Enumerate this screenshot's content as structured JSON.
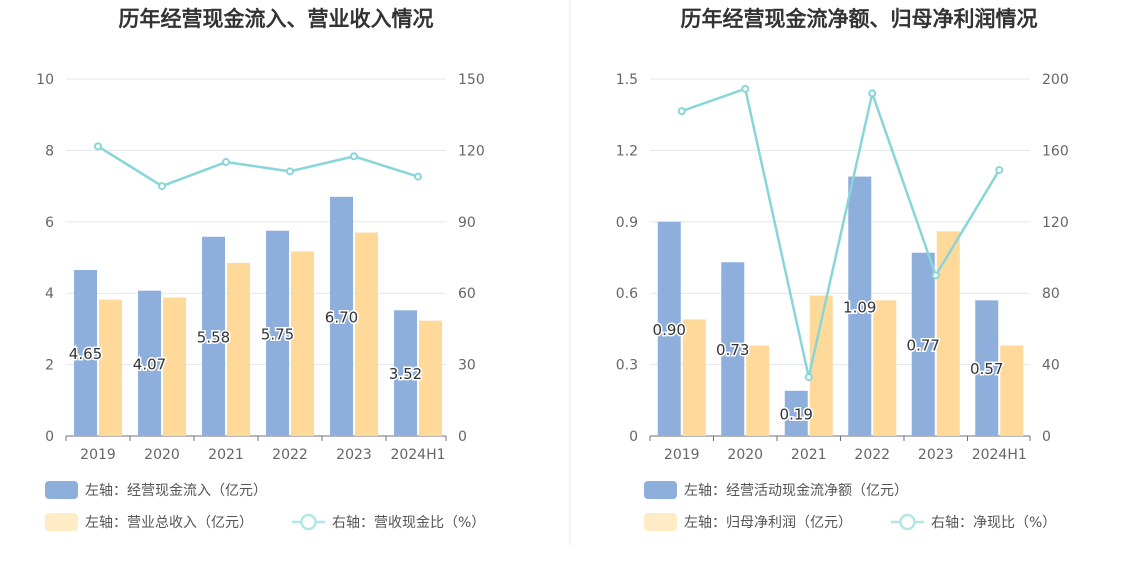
{
  "chart_data": [
    {
      "type": "bar",
      "title": "历年经营现金流入、营业收入情况",
      "categories": [
        "2019",
        "2020",
        "2021",
        "2022",
        "2023",
        "2024H1"
      ],
      "y_left": {
        "min": 0,
        "max": 10,
        "ticks": [
          "0",
          "2",
          "4",
          "6",
          "8",
          "10"
        ]
      },
      "y_right": {
        "min": 0,
        "max": 150,
        "ticks": [
          "0",
          "30",
          "60",
          "90",
          "120",
          "150"
        ]
      },
      "series": [
        {
          "name": "左轴：经营现金流入（亿元）",
          "kind": "bar",
          "axis": "left",
          "color": "#8eaedc",
          "values": [
            4.65,
            4.07,
            5.58,
            5.75,
            6.7,
            3.52
          ],
          "labels": [
            "4.65",
            "4.07",
            "5.58",
            "5.75",
            "6.70",
            "3.52"
          ]
        },
        {
          "name": "左轴：营业总收入（亿元）",
          "kind": "bar",
          "axis": "left",
          "color": "#ffd99a",
          "values": [
            3.82,
            3.88,
            4.85,
            5.17,
            5.7,
            3.23
          ]
        },
        {
          "name": "右轴：营收现金比（%）",
          "kind": "line",
          "axis": "right",
          "color": "#88d6d9",
          "values": [
            121.7,
            105.0,
            115.1,
            111.2,
            117.5,
            109.0
          ]
        }
      ]
    },
    {
      "type": "bar",
      "title": "历年经营现金流净额、归母净利润情况",
      "categories": [
        "2019",
        "2020",
        "2021",
        "2022",
        "2023",
        "2024H1"
      ],
      "y_left": {
        "min": 0,
        "max": 1.5,
        "ticks": [
          "0",
          "0.3",
          "0.6",
          "0.9",
          "1.2",
          "1.5"
        ]
      },
      "y_right": {
        "min": 0,
        "max": 200,
        "ticks": [
          "0",
          "40",
          "80",
          "120",
          "160",
          "200"
        ]
      },
      "series": [
        {
          "name": "左轴：经营活动现金流净额（亿元）",
          "kind": "bar",
          "axis": "left",
          "color": "#8eaedc",
          "values": [
            0.9,
            0.73,
            0.19,
            1.09,
            0.77,
            0.57
          ],
          "labels": [
            "0.90",
            "0.73",
            "0.19",
            "1.09",
            "0.77",
            "0.57"
          ]
        },
        {
          "name": "左轴：归母净利润（亿元）",
          "kind": "bar",
          "axis": "left",
          "color": "#ffd99a",
          "values": [
            0.49,
            0.38,
            0.59,
            0.57,
            0.86,
            0.38
          ]
        },
        {
          "name": "右轴：净现比（%）",
          "kind": "line",
          "axis": "right",
          "color": "#88d6d9",
          "values": [
            182.0,
            194.5,
            33.0,
            192.0,
            90.0,
            149.0
          ]
        }
      ]
    }
  ]
}
